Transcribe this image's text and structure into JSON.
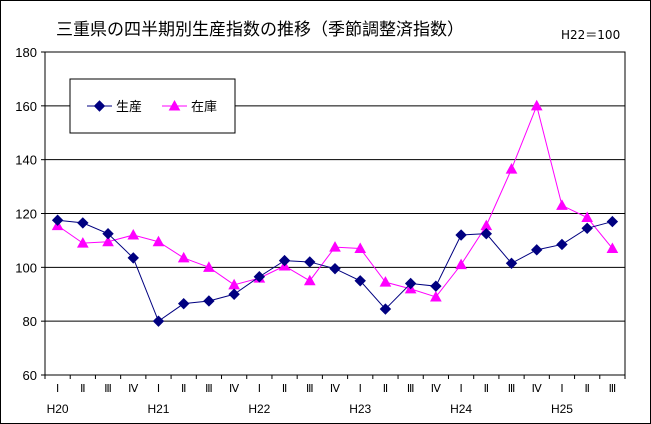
{
  "chart_data": {
    "type": "line",
    "title": "三重県の四半期別生産指数の推移（季節調整済指数）",
    "note": "H22＝100",
    "ylim": [
      60,
      180
    ],
    "yticks": [
      "60",
      "80",
      "100",
      "120",
      "140",
      "160",
      "180"
    ],
    "quarter_labels": [
      "Ⅰ",
      "Ⅱ",
      "Ⅲ",
      "Ⅳ",
      "Ⅰ",
      "Ⅱ",
      "Ⅲ",
      "Ⅳ",
      "Ⅰ",
      "Ⅱ",
      "Ⅲ",
      "Ⅳ",
      "Ⅰ",
      "Ⅱ",
      "Ⅲ",
      "Ⅳ",
      "Ⅰ",
      "Ⅱ",
      "Ⅲ",
      "Ⅳ",
      "Ⅰ",
      "Ⅱ",
      "Ⅲ"
    ],
    "year_labels": [
      {
        "label": "H20",
        "at": 0
      },
      {
        "label": "H21",
        "at": 4
      },
      {
        "label": "H22",
        "at": 8
      },
      {
        "label": "H23",
        "at": 12
      },
      {
        "label": "H24",
        "at": 16
      },
      {
        "label": "H25",
        "at": 20
      }
    ],
    "grid": true,
    "legend_position": "top-left",
    "series": [
      {
        "name": "生産",
        "color": "#000080",
        "marker": "diamond",
        "values": [
          117.5,
          116.5,
          112.5,
          103.5,
          80,
          86.5,
          87.5,
          90,
          96.5,
          102.5,
          102,
          99.5,
          95,
          84.5,
          94,
          93,
          112,
          112.5,
          101.5,
          106.5,
          108.5,
          114.5,
          117
        ]
      },
      {
        "name": "在庫",
        "color": "#ff00ff",
        "marker": "triangle",
        "values": [
          115.5,
          109,
          109.5,
          112,
          109.5,
          103.5,
          100,
          93.5,
          96,
          100.5,
          95,
          107.5,
          107,
          94.5,
          92,
          89,
          101,
          115.5,
          136.5,
          160,
          123,
          118.5,
          107
        ]
      }
    ]
  }
}
